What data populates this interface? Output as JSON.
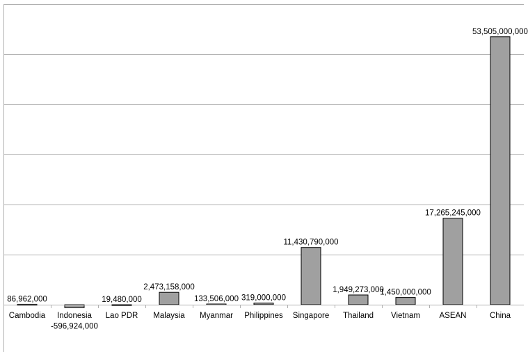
{
  "chart_data": {
    "type": "bar",
    "title": "",
    "xlabel": "",
    "ylabel": "",
    "ylim": [
      -1000000000,
      60000000000
    ],
    "grid": true,
    "gridlines": [
      0,
      10000000000,
      20000000000,
      30000000000,
      40000000000,
      50000000000,
      60000000000
    ],
    "bar_color": "#a0a0a0",
    "categories": [
      "Cambodia",
      "Indonesia",
      "Lao PDR",
      "Malaysia",
      "Myanmar",
      "Philippines",
      "Singapore",
      "Thailand",
      "Vietnam",
      "ASEAN",
      "China"
    ],
    "values": [
      86962000,
      -596924000,
      19480000,
      2473158000,
      133506000,
      319000000,
      11430790000,
      1949273000,
      1450000000,
      17265245000,
      53505000000
    ],
    "data_labels": [
      "86,962,000",
      "-596,924,000",
      "19,480,000",
      "2,473,158,000",
      "133,506,000",
      "319,000,000",
      "11,430,790,000",
      "1,949,273,000",
      "1,450,000,000",
      "17,265,245,000",
      "53,505,000,000"
    ]
  }
}
